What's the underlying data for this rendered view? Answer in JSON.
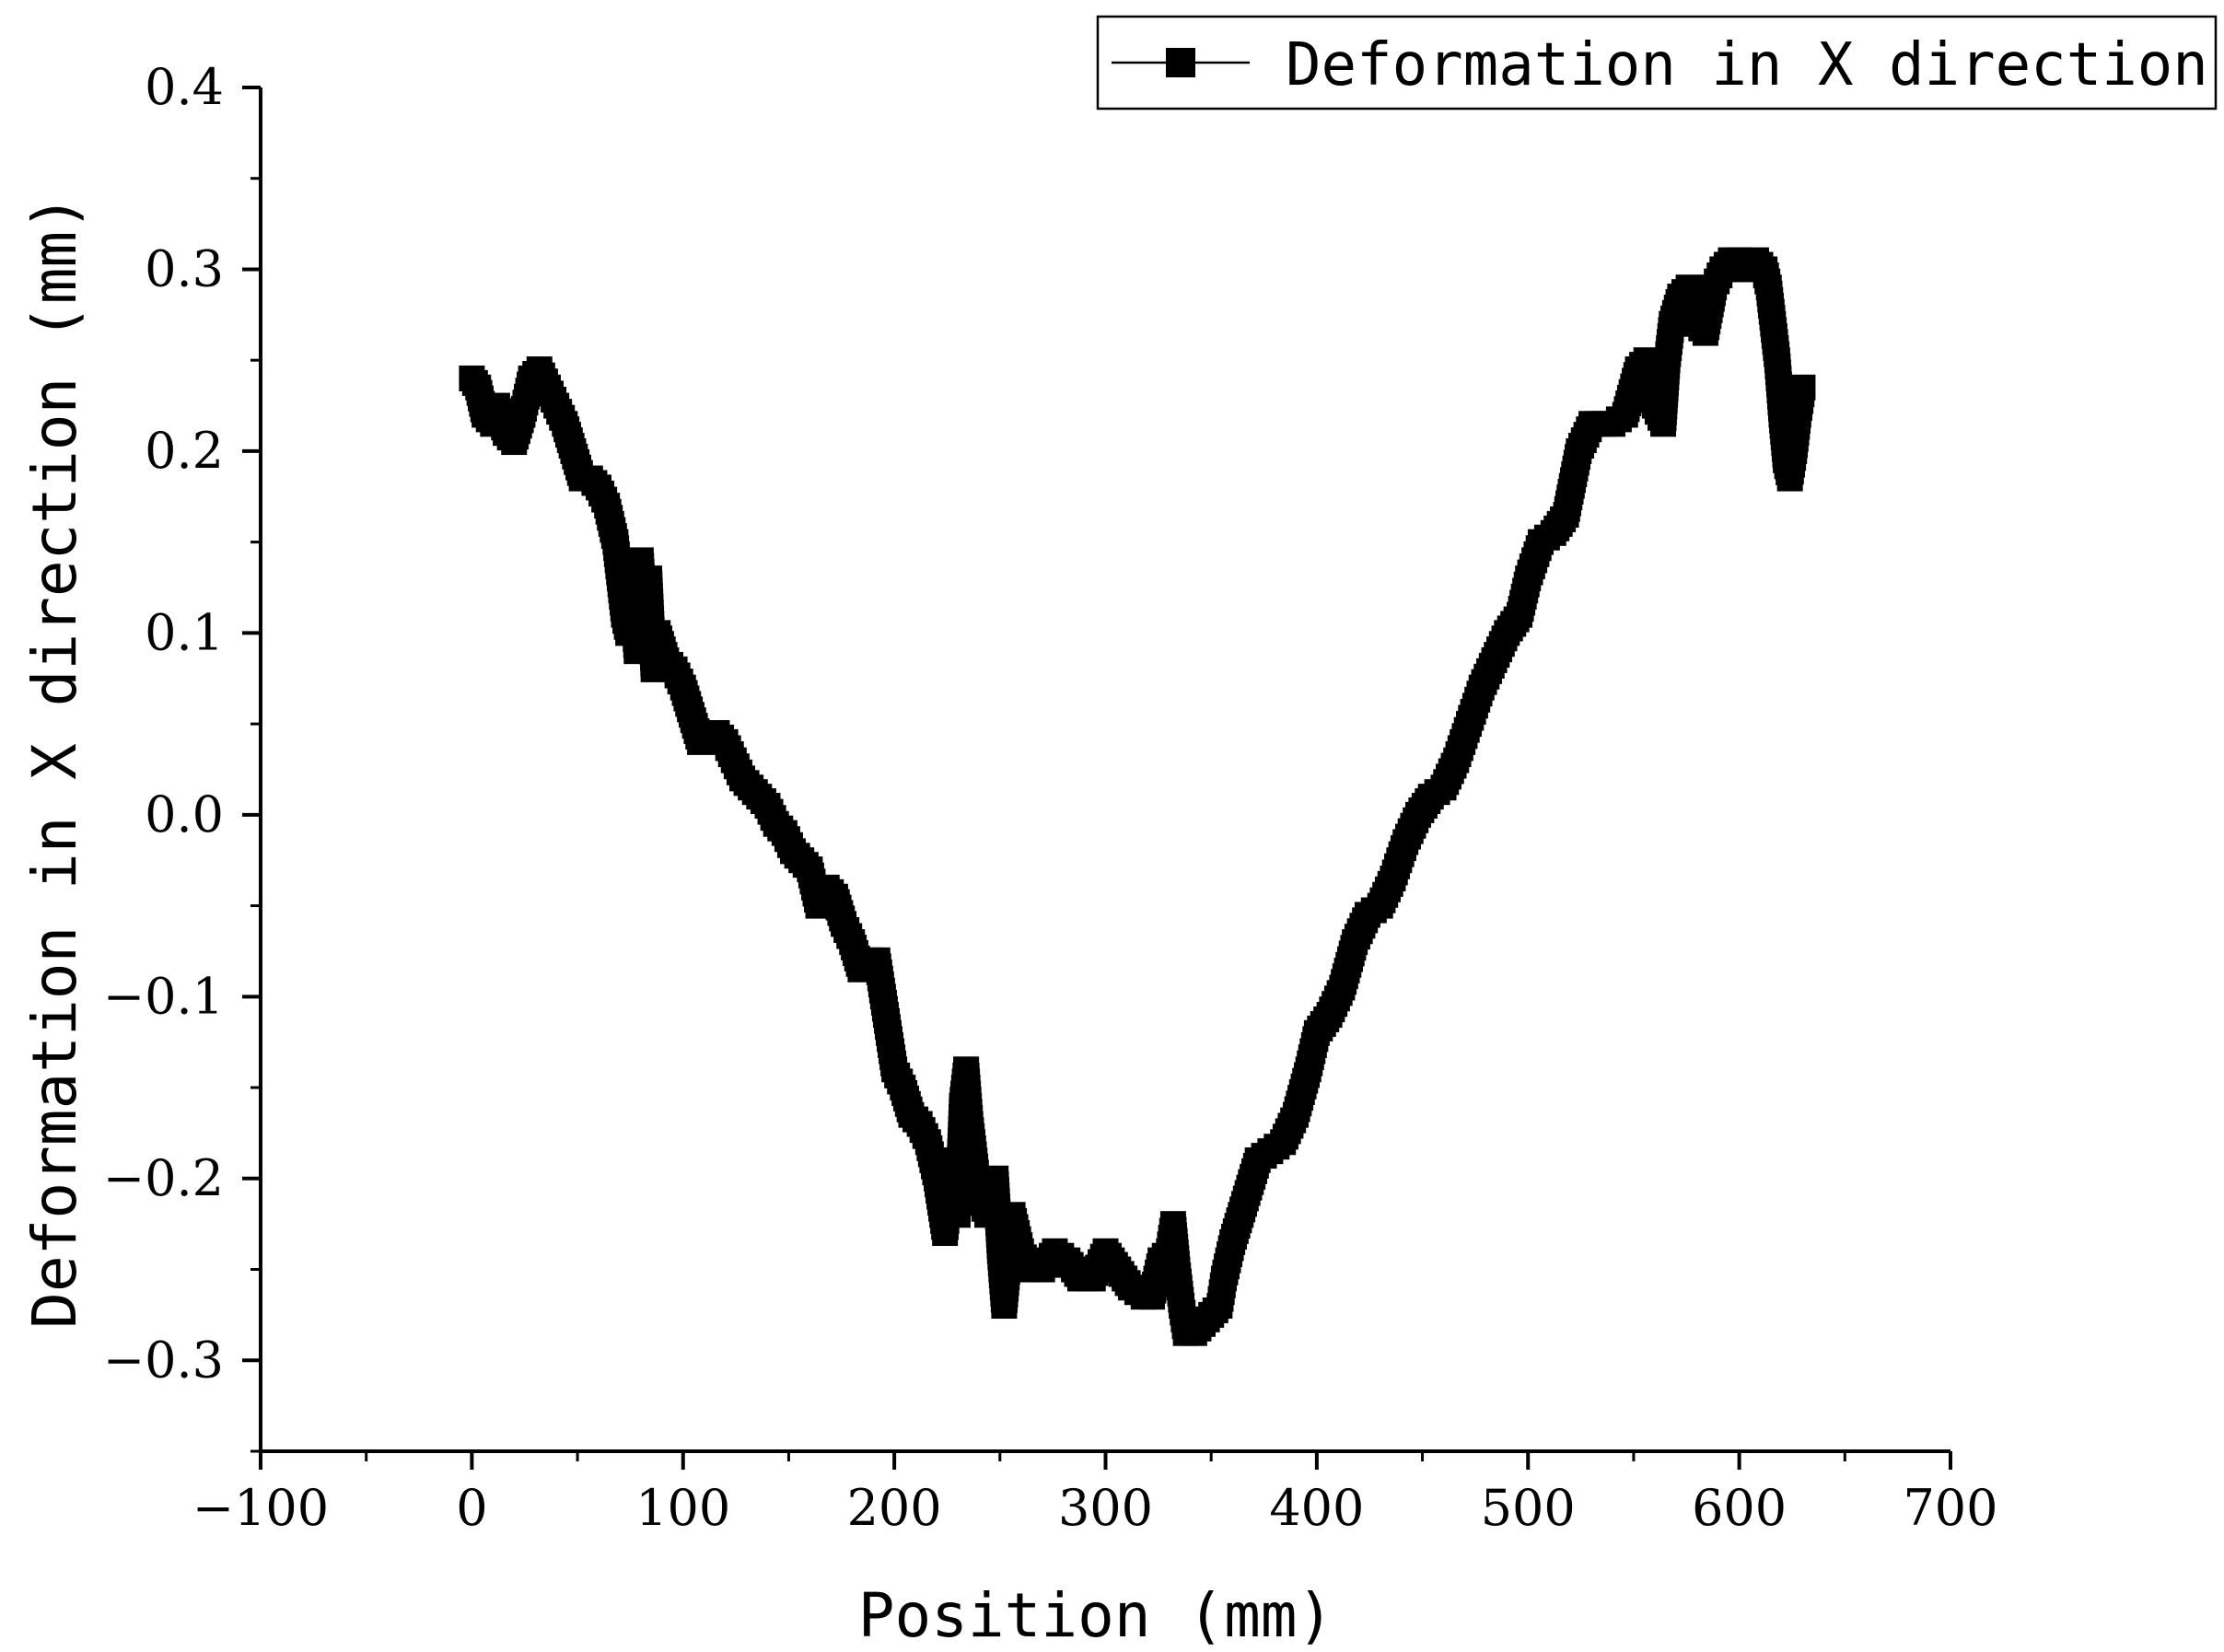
{
  "chart_data": {
    "type": "scatter",
    "title": "",
    "xlabel": "Position (mm)",
    "ylabel": "Deformation in X direction (mm)",
    "xlim": [
      -100,
      700
    ],
    "ylim": [
      -0.35,
      0.4
    ],
    "x_ticks": [
      -100,
      0,
      100,
      200,
      300,
      400,
      500,
      600,
      700
    ],
    "y_ticks": [
      -0.3,
      -0.2,
      -0.1,
      0.0,
      0.1,
      0.2,
      0.3,
      0.4
    ],
    "x_tick_labels": [
      "−100",
      "0",
      "100",
      "200",
      "300",
      "400",
      "500",
      "600",
      "700"
    ],
    "y_tick_labels": [
      "−0.3",
      "−0.2",
      "−0.1",
      "0.0",
      "0.1",
      "0.2",
      "0.3",
      "0.4"
    ],
    "grid": false,
    "legend_position": "top-right",
    "marker": "square",
    "color": "#000000",
    "series": [
      {
        "name": "Deformation in X direction",
        "points": [
          [
            0,
            0.24
          ],
          [
            3,
            0.235
          ],
          [
            6,
            0.22
          ],
          [
            10,
            0.215
          ],
          [
            12,
            0.225
          ],
          [
            16,
            0.21
          ],
          [
            20,
            0.205
          ],
          [
            24,
            0.22
          ],
          [
            28,
            0.24
          ],
          [
            32,
            0.245
          ],
          [
            36,
            0.235
          ],
          [
            40,
            0.225
          ],
          [
            44,
            0.215
          ],
          [
            48,
            0.2
          ],
          [
            52,
            0.185
          ],
          [
            56,
            0.185
          ],
          [
            60,
            0.18
          ],
          [
            64,
            0.17
          ],
          [
            68,
            0.15
          ],
          [
            70,
            0.13
          ],
          [
            72,
            0.11
          ],
          [
            74,
            0.1
          ],
          [
            76,
            0.12
          ],
          [
            78,
            0.09
          ],
          [
            80,
            0.14
          ],
          [
            82,
            0.1
          ],
          [
            84,
            0.13
          ],
          [
            86,
            0.08
          ],
          [
            88,
            0.1
          ],
          [
            92,
            0.085
          ],
          [
            96,
            0.08
          ],
          [
            100,
            0.07
          ],
          [
            104,
            0.055
          ],
          [
            108,
            0.04
          ],
          [
            112,
            0.045
          ],
          [
            116,
            0.045
          ],
          [
            120,
            0.04
          ],
          [
            124,
            0.03
          ],
          [
            128,
            0.02
          ],
          [
            132,
            0.015
          ],
          [
            136,
            0.01
          ],
          [
            140,
            0.005
          ],
          [
            144,
            -0.005
          ],
          [
            148,
            -0.01
          ],
          [
            152,
            -0.02
          ],
          [
            156,
            -0.025
          ],
          [
            160,
            -0.03
          ],
          [
            164,
            -0.05
          ],
          [
            168,
            -0.04
          ],
          [
            172,
            -0.045
          ],
          [
            176,
            -0.06
          ],
          [
            180,
            -0.07
          ],
          [
            184,
            -0.085
          ],
          [
            188,
            -0.08
          ],
          [
            192,
            -0.08
          ],
          [
            196,
            -0.11
          ],
          [
            200,
            -0.14
          ],
          [
            204,
            -0.15
          ],
          [
            208,
            -0.165
          ],
          [
            212,
            -0.17
          ],
          [
            216,
            -0.18
          ],
          [
            220,
            -0.2
          ],
          [
            224,
            -0.23
          ],
          [
            226,
            -0.21
          ],
          [
            228,
            -0.19
          ],
          [
            230,
            -0.22
          ],
          [
            232,
            -0.16
          ],
          [
            234,
            -0.14
          ],
          [
            236,
            -0.17
          ],
          [
            238,
            -0.19
          ],
          [
            240,
            -0.21
          ],
          [
            244,
            -0.22
          ],
          [
            248,
            -0.2
          ],
          [
            250,
            -0.24
          ],
          [
            252,
            -0.27
          ],
          [
            256,
            -0.22
          ],
          [
            260,
            -0.24
          ],
          [
            264,
            -0.25
          ],
          [
            270,
            -0.25
          ],
          [
            276,
            -0.24
          ],
          [
            282,
            -0.245
          ],
          [
            288,
            -0.255
          ],
          [
            294,
            -0.255
          ],
          [
            300,
            -0.24
          ],
          [
            306,
            -0.25
          ],
          [
            312,
            -0.26
          ],
          [
            318,
            -0.265
          ],
          [
            322,
            -0.265
          ],
          [
            326,
            -0.245
          ],
          [
            330,
            -0.24
          ],
          [
            332,
            -0.225
          ],
          [
            334,
            -0.25
          ],
          [
            336,
            -0.27
          ],
          [
            338,
            -0.285
          ],
          [
            342,
            -0.285
          ],
          [
            346,
            -0.28
          ],
          [
            350,
            -0.275
          ],
          [
            354,
            -0.27
          ],
          [
            356,
            -0.255
          ],
          [
            360,
            -0.235
          ],
          [
            364,
            -0.22
          ],
          [
            368,
            -0.205
          ],
          [
            372,
            -0.19
          ],
          [
            378,
            -0.185
          ],
          [
            384,
            -0.18
          ],
          [
            390,
            -0.165
          ],
          [
            396,
            -0.14
          ],
          [
            400,
            -0.12
          ],
          [
            406,
            -0.11
          ],
          [
            412,
            -0.095
          ],
          [
            418,
            -0.07
          ],
          [
            424,
            -0.055
          ],
          [
            430,
            -0.05
          ],
          [
            436,
            -0.035
          ],
          [
            442,
            -0.015
          ],
          [
            448,
            0.0
          ],
          [
            454,
            0.01
          ],
          [
            460,
            0.015
          ],
          [
            466,
            0.03
          ],
          [
            472,
            0.05
          ],
          [
            478,
            0.07
          ],
          [
            484,
            0.085
          ],
          [
            490,
            0.1
          ],
          [
            496,
            0.11
          ],
          [
            500,
            0.13
          ],
          [
            506,
            0.15
          ],
          [
            512,
            0.155
          ],
          [
            518,
            0.165
          ],
          [
            524,
            0.2
          ],
          [
            530,
            0.215
          ],
          [
            536,
            0.215
          ],
          [
            540,
            0.215
          ],
          [
            546,
            0.22
          ],
          [
            552,
            0.245
          ],
          [
            556,
            0.25
          ],
          [
            560,
            0.225
          ],
          [
            564,
            0.215
          ],
          [
            566,
            0.25
          ],
          [
            568,
            0.27
          ],
          [
            572,
            0.285
          ],
          [
            576,
            0.29
          ],
          [
            580,
            0.27
          ],
          [
            584,
            0.265
          ],
          [
            588,
            0.29
          ],
          [
            592,
            0.3
          ],
          [
            596,
            0.305
          ],
          [
            600,
            0.305
          ],
          [
            604,
            0.3
          ],
          [
            608,
            0.305
          ],
          [
            612,
            0.3
          ],
          [
            614,
            0.29
          ],
          [
            616,
            0.27
          ],
          [
            618,
            0.25
          ],
          [
            620,
            0.22
          ],
          [
            622,
            0.195
          ],
          [
            624,
            0.185
          ],
          [
            626,
            0.2
          ],
          [
            628,
            0.22
          ],
          [
            630,
            0.235
          ]
        ]
      }
    ]
  }
}
